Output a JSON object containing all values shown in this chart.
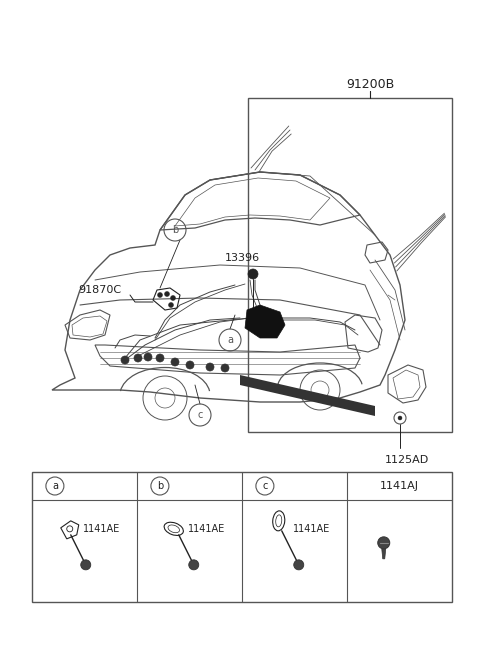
{
  "bg_color": "#ffffff",
  "line_color": "#555555",
  "dark_color": "#222222",
  "label_91200B": "91200B",
  "label_91870C": "91870C",
  "label_13396": "13396",
  "label_1125AD": "1125AD",
  "label_a": "a",
  "label_b": "b",
  "label_c": "c",
  "table_labels": [
    "a",
    "b",
    "c",
    "1141AJ"
  ],
  "part_labels": [
    "1141AE",
    "1141AE",
    "1141AE",
    ""
  ],
  "figsize": [
    4.8,
    6.55
  ],
  "dpi": 100,
  "car_color": "#666666",
  "wire_color": "#444444"
}
